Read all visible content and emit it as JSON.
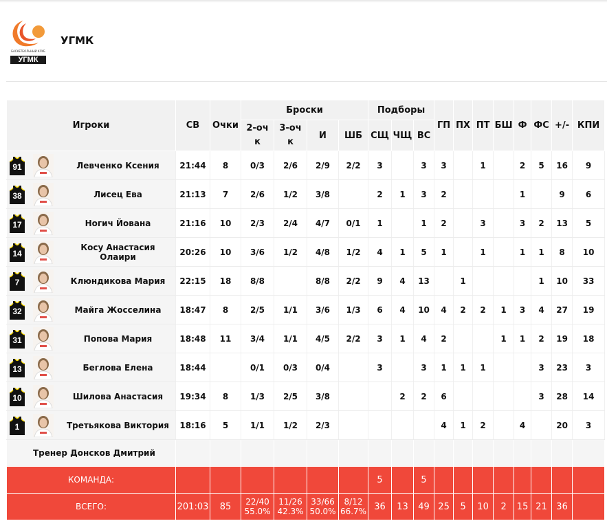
{
  "team": {
    "name": "УГМК",
    "logo_text": "УГМК",
    "logo_caption": "БАСКЕТБОЛЬНЫЙ КЛУБ"
  },
  "headers": {
    "players": "Игроки",
    "min": "СВ",
    "points": "Очки",
    "shots": "Броски",
    "two": "2-очк",
    "three": "3-очк",
    "fg": "И",
    "ft": "ШБ",
    "rebounds": "Подборы",
    "reb_def": "СЩ",
    "reb_off": "ЧЩ",
    "reb_total": "ВС",
    "ast": "ГП",
    "to": "ПХ",
    "stl": "ПТ",
    "blk": "БШ",
    "pf": "Ф",
    "fd": "ФС",
    "pm": "+/-",
    "eff": "КПИ"
  },
  "players": [
    {
      "num": "91",
      "name": "Левченко Ксения",
      "min": "21:44",
      "pts": "8",
      "two": "0/3",
      "three": "2/6",
      "fg": "2/9",
      "ft": "2/2",
      "rd": "3",
      "ro": "",
      "rt": "3",
      "ast": "3",
      "to": "",
      "stl": "1",
      "blk": "",
      "pf": "2",
      "fd": "5",
      "pm": "16",
      "eff": "9"
    },
    {
      "num": "38",
      "name": "Лисец Ева",
      "min": "21:13",
      "pts": "7",
      "two": "2/6",
      "three": "1/2",
      "fg": "3/8",
      "ft": "",
      "rd": "2",
      "ro": "1",
      "rt": "3",
      "ast": "2",
      "to": "",
      "stl": "",
      "blk": "",
      "pf": "1",
      "fd": "",
      "pm": "9",
      "eff": "6"
    },
    {
      "num": "17",
      "name": "Ногич Йована",
      "min": "21:16",
      "pts": "10",
      "two": "2/3",
      "three": "2/4",
      "fg": "4/7",
      "ft": "0/1",
      "rd": "1",
      "ro": "",
      "rt": "1",
      "ast": "2",
      "to": "",
      "stl": "3",
      "blk": "",
      "pf": "3",
      "fd": "2",
      "pm": "13",
      "eff": "5"
    },
    {
      "num": "14",
      "name": "Косу Анастасия Олаири",
      "min": "20:26",
      "pts": "10",
      "two": "3/6",
      "three": "1/2",
      "fg": "4/8",
      "ft": "1/2",
      "rd": "4",
      "ro": "1",
      "rt": "5",
      "ast": "1",
      "to": "",
      "stl": "1",
      "blk": "",
      "pf": "1",
      "fd": "1",
      "pm": "8",
      "eff": "10"
    },
    {
      "num": "7",
      "name": "Клюндикова Мария",
      "min": "22:15",
      "pts": "18",
      "two": "8/8",
      "three": "",
      "fg": "8/8",
      "ft": "2/2",
      "rd": "9",
      "ro": "4",
      "rt": "13",
      "ast": "",
      "to": "1",
      "stl": "",
      "blk": "",
      "pf": "",
      "fd": "1",
      "pm": "10",
      "eff": "33"
    },
    {
      "num": "32",
      "name": "Майга Жосселина",
      "min": "18:47",
      "pts": "8",
      "two": "2/5",
      "three": "1/1",
      "fg": "3/6",
      "ft": "1/3",
      "rd": "6",
      "ro": "4",
      "rt": "10",
      "ast": "4",
      "to": "2",
      "stl": "2",
      "blk": "1",
      "pf": "3",
      "fd": "4",
      "pm": "27",
      "eff": "19"
    },
    {
      "num": "31",
      "name": "Попова Мария",
      "min": "18:48",
      "pts": "11",
      "two": "3/4",
      "three": "1/1",
      "fg": "4/5",
      "ft": "2/2",
      "rd": "3",
      "ro": "1",
      "rt": "4",
      "ast": "2",
      "to": "",
      "stl": "",
      "blk": "1",
      "pf": "1",
      "fd": "2",
      "pm": "19",
      "eff": "18"
    },
    {
      "num": "13",
      "name": "Беглова Елена",
      "min": "18:44",
      "pts": "",
      "two": "0/1",
      "three": "0/3",
      "fg": "0/4",
      "ft": "",
      "rd": "3",
      "ro": "",
      "rt": "3",
      "ast": "1",
      "to": "1",
      "stl": "1",
      "blk": "",
      "pf": "",
      "fd": "3",
      "pm": "23",
      "eff": "3"
    },
    {
      "num": "10",
      "name": "Шилова Анастасия",
      "min": "19:34",
      "pts": "8",
      "two": "1/3",
      "three": "2/5",
      "fg": "3/8",
      "ft": "",
      "rd": "",
      "ro": "2",
      "rt": "2",
      "ast": "6",
      "to": "",
      "stl": "",
      "blk": "",
      "pf": "",
      "fd": "3",
      "pm": "28",
      "eff": "14"
    },
    {
      "num": "1",
      "name": "Третьякова Виктория",
      "min": "18:16",
      "pts": "5",
      "two": "1/1",
      "three": "1/2",
      "fg": "2/3",
      "ft": "",
      "rd": "",
      "ro": "",
      "rt": "",
      "ast": "4",
      "to": "1",
      "stl": "2",
      "blk": "",
      "pf": "4",
      "fd": "",
      "pm": "20",
      "eff": "3"
    }
  ],
  "coach": "Тренер Донсков Дмитрий",
  "team_row": {
    "label": "КОМАНДА:",
    "rd": "5",
    "rt": "5"
  },
  "total_row": {
    "label": "ВСЕГО:",
    "min": "201:03",
    "pts": "85",
    "two": "22/40",
    "two_pct": "55.0%",
    "three": "11/26",
    "three_pct": "42.3%",
    "fg": "33/66",
    "fg_pct": "50.0%",
    "ft": "8/12",
    "ft_pct": "66.7%",
    "rd": "36",
    "ro": "13",
    "rt": "49",
    "ast": "25",
    "to": "5",
    "stl": "10",
    "blk": "2",
    "pf": "15",
    "fd": "21",
    "pm": "36",
    "eff": ""
  },
  "colors": {
    "accent": "#f0483a",
    "jersey": "#111111",
    "jersey_trim": "#f2d400",
    "header_bg": "#f1f1f1"
  }
}
